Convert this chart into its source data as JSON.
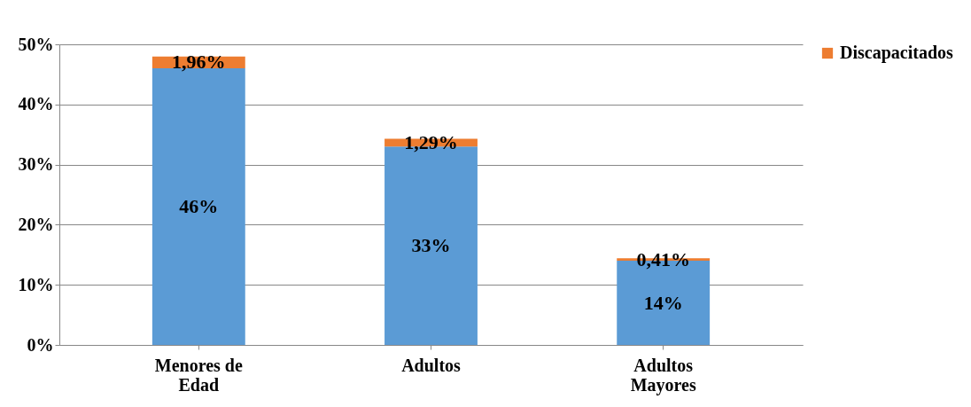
{
  "chart_data": {
    "type": "bar",
    "stacked": true,
    "categories": [
      "Menores de Edad",
      "Adultos",
      "Adultos Mayores"
    ],
    "series": [
      {
        "color": "#5b9bd5",
        "values": [
          46,
          33,
          14
        ],
        "value_labels": [
          "46%",
          "33%",
          "14%"
        ]
      },
      {
        "name": "Discapacitados",
        "color": "#ed7d31",
        "values": [
          1.96,
          1.29,
          0.41
        ],
        "value_labels": [
          "1,96%",
          "1,29%",
          "0,41%"
        ]
      }
    ],
    "ylim": [
      0,
      50
    ],
    "yticks": [
      {
        "value": 0,
        "label": "0%"
      },
      {
        "value": 10,
        "label": "10%"
      },
      {
        "value": 20,
        "label": "20%"
      },
      {
        "value": 30,
        "label": "30%"
      },
      {
        "value": 40,
        "label": "40%"
      },
      {
        "value": 50,
        "label": "50%"
      }
    ],
    "grid": "y",
    "legend": "right"
  }
}
